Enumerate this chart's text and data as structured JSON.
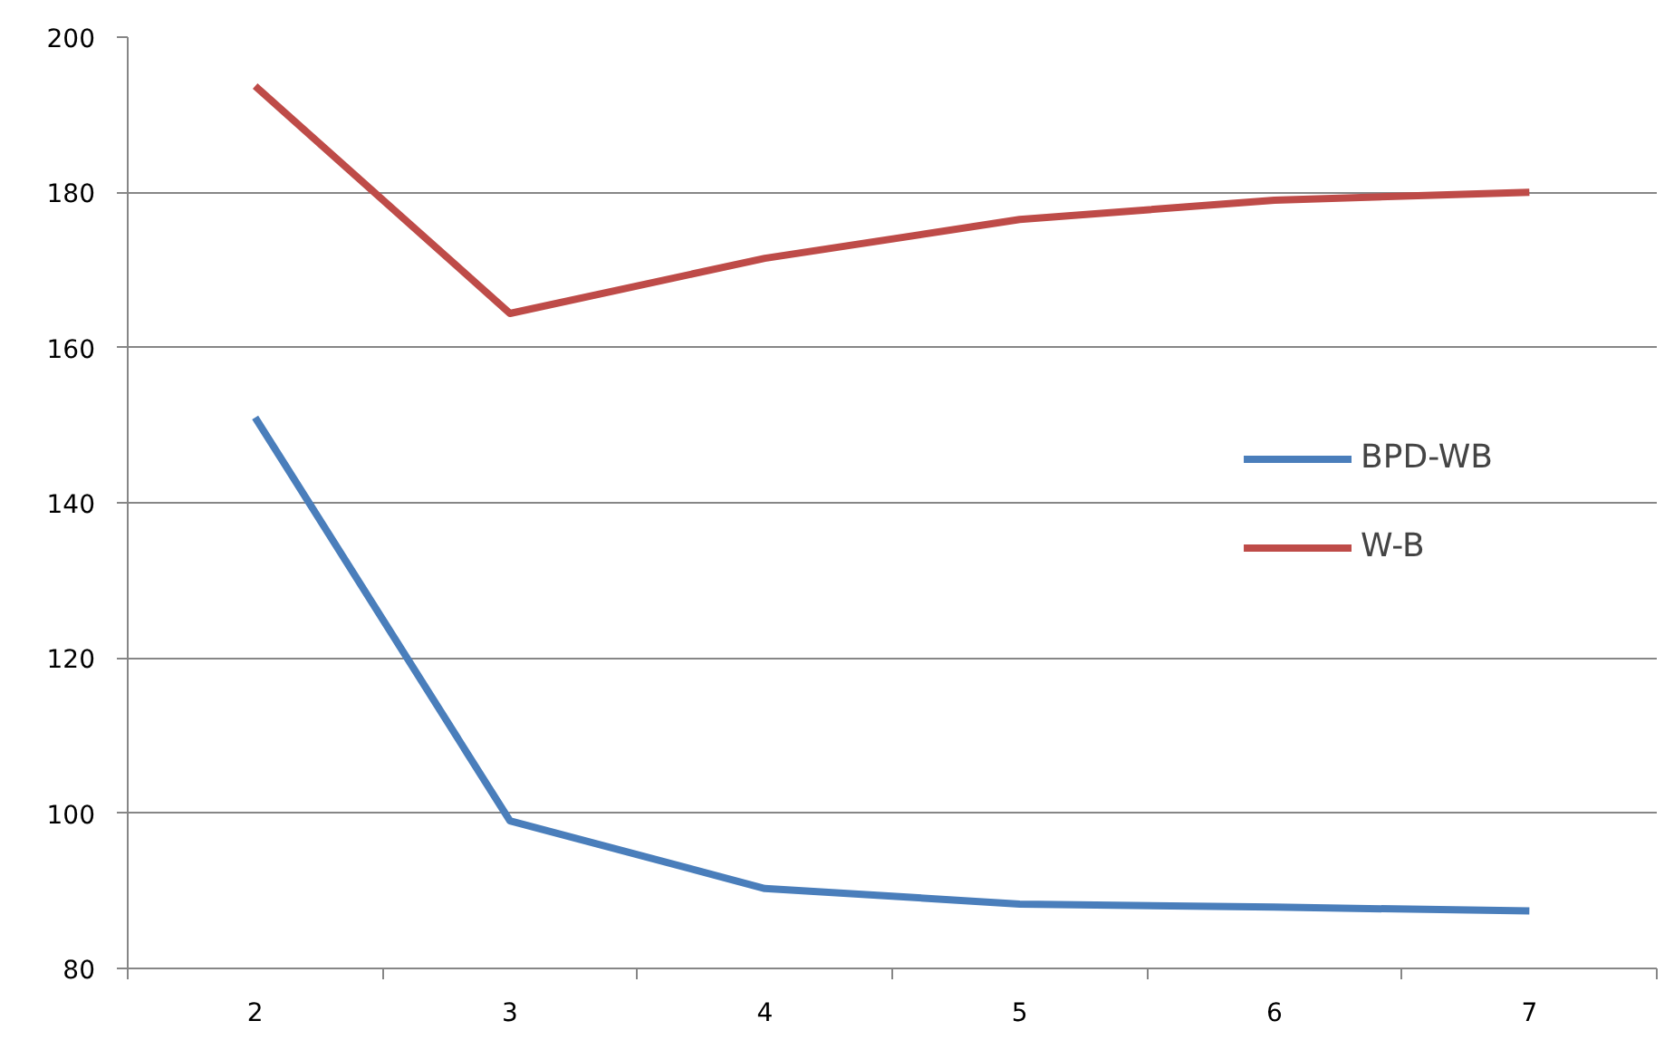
{
  "chart_data": {
    "type": "line",
    "categories": [
      "2",
      "3",
      "4",
      "5",
      "6",
      "7"
    ],
    "series": [
      {
        "name": "BPD-WB",
        "color": "#4a7ebb",
        "values": [
          151,
          99,
          90.3,
          88.3,
          87.9,
          87.4
        ]
      },
      {
        "name": "W-B",
        "color": "#be4b48",
        "values": [
          193.7,
          164.4,
          171.5,
          176.5,
          179,
          180
        ]
      }
    ],
    "ylim": [
      80,
      200
    ],
    "yticks": [
      80,
      100,
      120,
      140,
      160,
      180,
      200
    ],
    "grid": "y",
    "legend": "right",
    "marker": "none",
    "line_style": "solid"
  }
}
